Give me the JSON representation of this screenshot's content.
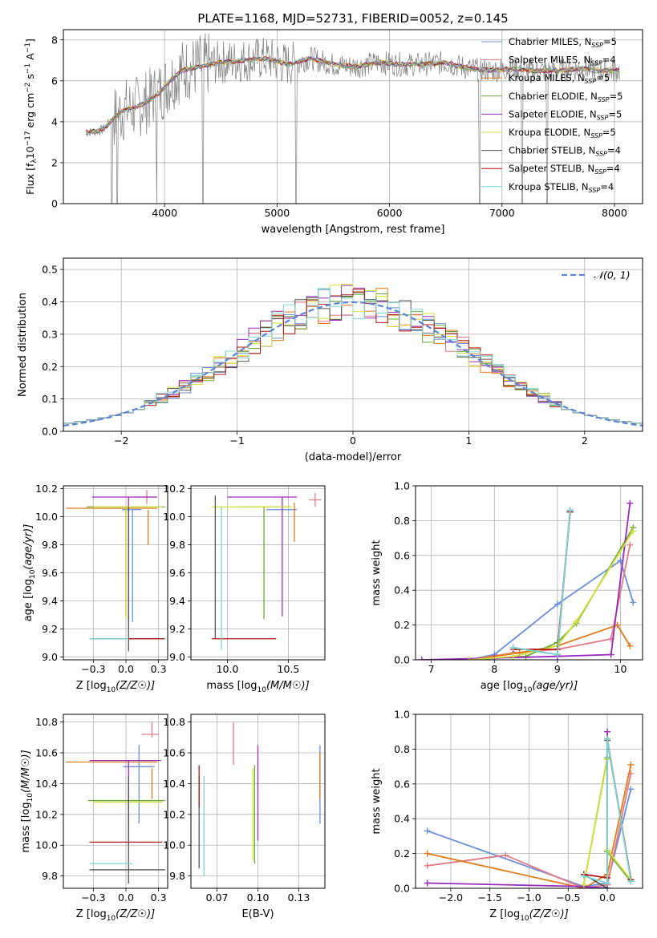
{
  "figure": {
    "title": "PLATE=1168, MJD=52731, FIBERID=0052, z=0.145"
  },
  "models": [
    {
      "imf": "Chabrier",
      "lib": "MILES",
      "nssp": 5,
      "color": "#6a8fd8"
    },
    {
      "imf": "Salpeter",
      "lib": "MILES",
      "nssp": 4,
      "color": "#e27b86"
    },
    {
      "imf": "Kroupa",
      "lib": "MILES",
      "nssp": 5,
      "color": "#e07b1a"
    },
    {
      "imf": "Chabrier",
      "lib": "ELODIE",
      "nssp": 5,
      "color": "#6aaa3a"
    },
    {
      "imf": "Salpeter",
      "lib": "ELODIE",
      "nssp": 5,
      "color": "#9b2bc0"
    },
    {
      "imf": "Kroupa",
      "lib": "ELODIE",
      "nssp": 5,
      "color": "#d6e03a"
    },
    {
      "imf": "Chabrier",
      "lib": "STELIB",
      "nssp": 4,
      "color": "#555555"
    },
    {
      "imf": "Salpeter",
      "lib": "STELIB",
      "nssp": 4,
      "color": "#b01818"
    },
    {
      "imf": "Kroupa",
      "lib": "STELIB",
      "nssp": 4,
      "color": "#7dd6d6"
    }
  ],
  "legend_labels": [
    "Chabrier MILES, N",
    "Salpeter MILES, N",
    "Kroupa MILES, N",
    "Chabrier ELODIE, N",
    "Salpeter ELODIE, N",
    "Kroupa ELODIE, N",
    "Chabrier STELIB, N",
    "Salpeter STELIB, N",
    "Kroupa STELIB, N"
  ],
  "legend_sub": "SSP",
  "legend_vals": [
    "=5",
    "=4",
    "=5",
    "=5",
    "=5",
    "=5",
    "=4",
    "=4",
    "=4"
  ],
  "chart_data": [
    {
      "id": "spectrum",
      "type": "line",
      "xlabel": "wavelength [Angstrom, rest frame]",
      "ylabel_parts": [
        "Flux [f",
        "λ",
        "10",
        "−17",
        " erg cm",
        "−2",
        " s",
        "−1",
        " A",
        "−1",
        "]"
      ],
      "xlim": [
        3100,
        8250
      ],
      "ylim": [
        0,
        8.5
      ],
      "xticks": [
        4000,
        5000,
        6000,
        7000,
        8000
      ],
      "yticks": [
        0,
        2,
        4,
        6,
        8
      ],
      "data_color": "#808080",
      "data_x": [
        3350,
        3450,
        3550,
        3650,
        3750,
        3850,
        3950,
        4050,
        4150,
        4300,
        4500,
        4700,
        4900,
        5100,
        5300,
        5500,
        5700,
        5900,
        6100,
        6300,
        6500,
        6700,
        6900,
        7100,
        7300,
        7500,
        7700,
        7900,
        8050
      ],
      "model_y": [
        3.5,
        3.6,
        4.2,
        4.6,
        4.7,
        5.0,
        5.4,
        6.0,
        6.5,
        6.7,
        6.9,
        7.0,
        7.1,
        6.8,
        7.1,
        6.8,
        6.7,
        6.9,
        6.8,
        6.8,
        6.9,
        6.6,
        6.5,
        6.6,
        6.5,
        6.5,
        6.6,
        6.5,
        6.5
      ],
      "drops": [
        3530,
        3580,
        3930,
        4340,
        5170,
        6800,
        7180,
        7400
      ]
    },
    {
      "id": "residuals",
      "type": "histogram",
      "xlabel": "(data-model)/error",
      "ylabel": "Normed distribution",
      "xlim": [
        -2.5,
        2.5
      ],
      "ylim": [
        0,
        0.535
      ],
      "xticks": [
        -2,
        -1,
        0,
        1,
        2
      ],
      "yticks": [
        0.0,
        0.1,
        0.2,
        0.3,
        0.4,
        0.5
      ],
      "bin_width": 0.1,
      "bin_start": -2.5,
      "reference": {
        "label": "𝒩(0, 1)",
        "mean": 0,
        "sigma": 1,
        "color": "#5b84d8"
      }
    },
    {
      "id": "age-vs-Z",
      "type": "errorbar",
      "xlabel": "Z [log",
      "ylabel": "age  [log",
      "xlim": [
        -0.48,
        0.32
      ],
      "ylim": [
        8.98,
        10.22
      ],
      "xticks": [
        -0.25,
        0.0,
        0.25
      ],
      "yticks": [
        9.0,
        9.2,
        9.4,
        9.6,
        9.8,
        10.0,
        10.2
      ],
      "points": [
        {
          "x": 0.05,
          "y": 10.05,
          "xerr": [
            0.08,
            0.07
          ],
          "yerr": [
            0.8,
            0.0
          ],
          "model": 0
        },
        {
          "x": 0.16,
          "y": 10.14,
          "xerr": [
            0.1,
            0.06
          ],
          "yerr": [
            0.05,
            0.05
          ],
          "model": 1
        },
        {
          "x": 0.0,
          "y": 10.06,
          "xerr": [
            0.46,
            0.24
          ],
          "yerr": [
            0.0,
            0.0
          ],
          "model": 2
        },
        {
          "x": 0.17,
          "y": 10.05,
          "xerr": [
            0.0,
            0.0
          ],
          "yerr": [
            0.25,
            0.0
          ],
          "model": 2
        },
        {
          "x": 0.0,
          "y": 10.07,
          "xerr": [
            0.3,
            0.3
          ],
          "yerr": [
            0.78,
            0.0
          ],
          "model": 3
        },
        {
          "x": 0.02,
          "y": 10.14,
          "xerr": [
            0.28,
            0.22
          ],
          "yerr": [
            0.9,
            0.0
          ],
          "model": 4
        },
        {
          "x": 0.0,
          "y": 10.07,
          "xerr": [
            0.25,
            0.28
          ],
          "yerr": [
            0.8,
            0.0
          ],
          "model": 5
        },
        {
          "x": 0.0,
          "y": 9.13,
          "xerr": [
            0.28,
            0.3
          ],
          "yerr": [
            0.0,
            0.0
          ],
          "model": 6
        },
        {
          "x": 0.02,
          "y": 10.07,
          "xerr": [
            0.0,
            0.0
          ],
          "yerr": [
            1.03,
            0.0
          ],
          "model": 6
        },
        {
          "x": 0.02,
          "y": 9.13,
          "xerr": [
            0.0,
            0.27
          ],
          "yerr": [
            0.0,
            0.0
          ],
          "model": 7
        },
        {
          "x": 0.02,
          "y": 9.13,
          "xerr": [
            0.3,
            0.0
          ],
          "yerr": [
            0.0,
            0.0
          ],
          "model": 8
        }
      ]
    },
    {
      "id": "age-vs-mass",
      "type": "errorbar",
      "xlabel": "mass [log",
      "ylabel": "",
      "xlim": [
        9.7,
        10.8
      ],
      "ylim": [
        8.98,
        10.22
      ],
      "xticks": [
        10.0,
        10.5
      ],
      "yticks": [
        9.0,
        9.2,
        9.4,
        9.6,
        9.8,
        10.0,
        10.2
      ],
      "points": [
        {
          "x": 10.52,
          "y": 10.05,
          "xerr": [
            0.2,
            0.05
          ],
          "yerr": [
            0.0,
            0.0
          ],
          "model": 0
        },
        {
          "x": 10.72,
          "y": 10.12,
          "xerr": [
            0.05,
            0.05
          ],
          "yerr": [
            0.05,
            0.05
          ],
          "model": 1
        },
        {
          "x": 10.55,
          "y": 10.1,
          "xerr": [
            0.0,
            0.0
          ],
          "yerr": [
            0.28,
            0.0
          ],
          "model": 2
        },
        {
          "x": 10.3,
          "y": 10.07,
          "xerr": [
            0.2,
            0.2
          ],
          "yerr": [
            0.8,
            0.0
          ],
          "model": 3
        },
        {
          "x": 10.45,
          "y": 10.14,
          "xerr": [
            0.45,
            0.12
          ],
          "yerr": [
            0.85,
            0.0
          ],
          "model": 4
        },
        {
          "x": 10.25,
          "y": 10.07,
          "xerr": [
            0.38,
            0.28
          ],
          "yerr": [
            0.0,
            0.0
          ],
          "model": 5
        },
        {
          "x": 9.9,
          "y": 10.15,
          "xerr": [
            0.0,
            0.0
          ],
          "yerr": [
            1.02,
            0.0
          ],
          "model": 6
        },
        {
          "x": 10.0,
          "y": 9.13,
          "xerr": [
            0.13,
            0.4
          ],
          "yerr": [
            0.0,
            0.0
          ],
          "model": 7
        },
        {
          "x": 9.95,
          "y": 10.07,
          "xerr": [
            0.0,
            0.0
          ],
          "yerr": [
            1.02,
            0.0
          ],
          "model": 8
        }
      ]
    },
    {
      "id": "weight-vs-age",
      "type": "line",
      "xlabel": "age  [log",
      "ylabel": "mass weight",
      "xlim": [
        6.75,
        10.35
      ],
      "ylim": [
        0,
        1.0
      ],
      "xticks": [
        7,
        8,
        9,
        10
      ],
      "yticks": [
        0.0,
        0.2,
        0.4,
        0.6,
        0.8,
        1.0
      ],
      "series": [
        {
          "model": 0,
          "x": [
            7.6,
            8.0,
            9.0,
            10.0,
            10.2
          ],
          "y": [
            0.0,
            0.03,
            0.32,
            0.57,
            0.33
          ]
        },
        {
          "model": 1,
          "x": [
            7.6,
            8.3,
            9.0,
            9.85,
            10.15
          ],
          "y": [
            0.0,
            0.04,
            0.06,
            0.12,
            0.66
          ]
        },
        {
          "model": 2,
          "x": [
            7.6,
            8.4,
            9.0,
            9.95,
            10.15
          ],
          "y": [
            0.0,
            0.04,
            0.08,
            0.2,
            0.08
          ]
        },
        {
          "model": 3,
          "x": [
            7.6,
            8.5,
            9.0,
            9.3,
            10.2
          ],
          "y": [
            0.0,
            0.02,
            0.1,
            0.21,
            0.76
          ]
        },
        {
          "model": 4,
          "x": [
            6.85,
            8.0,
            9.0,
            9.85,
            10.15
          ],
          "y": [
            0.0,
            0.01,
            0.02,
            0.03,
            0.9
          ]
        },
        {
          "model": 5,
          "x": [
            7.6,
            8.3,
            9.0,
            9.3,
            10.2
          ],
          "y": [
            0.0,
            0.02,
            0.08,
            0.22,
            0.74
          ]
        },
        {
          "model": 6,
          "x": [
            8.3,
            9.0,
            9.2,
            9.2
          ],
          "y": [
            0.07,
            0.03,
            0.85,
            0.86
          ]
        },
        {
          "model": 7,
          "x": [
            8.3,
            9.0,
            9.2,
            9.2
          ],
          "y": [
            0.06,
            0.06,
            0.85,
            0.86
          ]
        },
        {
          "model": 8,
          "x": [
            8.3,
            9.0,
            9.2,
            9.2
          ],
          "y": [
            0.07,
            0.03,
            0.86,
            0.86
          ]
        }
      ]
    },
    {
      "id": "mass-vs-Z",
      "type": "errorbar",
      "xlabel": "Z [log",
      "ylabel": "mass [log",
      "xlim": [
        -0.48,
        0.32
      ],
      "ylim": [
        9.72,
        10.85
      ],
      "xticks": [
        -0.25,
        0.0,
        0.25
      ],
      "yticks": [
        9.8,
        10.0,
        10.2,
        10.4,
        10.6,
        10.8
      ],
      "points": [
        {
          "x": 0.1,
          "y": 10.51,
          "xerr": [
            0.12,
            0.12
          ],
          "yerr": [
            0.37,
            0.14
          ],
          "model": 0
        },
        {
          "x": 0.2,
          "y": 10.72,
          "xerr": [
            0.08,
            0.05
          ],
          "yerr": [
            0.02,
            0.08
          ],
          "model": 1
        },
        {
          "x": 0.0,
          "y": 10.54,
          "xerr": [
            0.46,
            0.24
          ],
          "yerr": [
            0.0,
            0.0
          ],
          "model": 2
        },
        {
          "x": 0.2,
          "y": 10.5,
          "xerr": [
            0.0,
            0.0
          ],
          "yerr": [
            0.2,
            0.0
          ],
          "model": 2
        },
        {
          "x": 0.0,
          "y": 10.29,
          "xerr": [
            0.29,
            0.3
          ],
          "yerr": [
            0.0,
            0.0
          ],
          "model": 3
        },
        {
          "x": 0.02,
          "y": 10.55,
          "xerr": [
            0.3,
            0.25
          ],
          "yerr": [
            0.55,
            0.0
          ],
          "model": 4
        },
        {
          "x": 0.0,
          "y": 10.28,
          "xerr": [
            0.25,
            0.28
          ],
          "yerr": [
            0.0,
            0.0
          ],
          "model": 5
        },
        {
          "x": 0.0,
          "y": 9.84,
          "xerr": [
            0.28,
            0.3
          ],
          "yerr": [
            0.0,
            0.0
          ],
          "model": 6
        },
        {
          "x": 0.02,
          "y": 10.45,
          "xerr": [
            0.0,
            0.0
          ],
          "yerr": [
            0.7,
            0.0
          ],
          "model": 6
        },
        {
          "x": 0.0,
          "y": 10.02,
          "xerr": [
            0.28,
            0.28
          ],
          "yerr": [
            0.0,
            0.0
          ],
          "model": 7
        },
        {
          "x": 0.0,
          "y": 9.88,
          "xerr": [
            0.28,
            0.05
          ],
          "yerr": [
            0.0,
            0.0
          ],
          "model": 8
        }
      ]
    },
    {
      "id": "mass-vs-ebv",
      "type": "errorbar",
      "xlabel": "E(B-V)",
      "ylabel": "",
      "xlim": [
        0.059,
        0.141
      ],
      "ylim": [
        9.72,
        10.85
      ],
      "xticks": [
        0.075,
        0.1,
        0.125
      ],
      "yticks": [
        9.8,
        10.0,
        10.2,
        10.4,
        10.6,
        10.8
      ],
      "points": [
        {
          "x": 0.138,
          "y": 10.4,
          "xerr": [
            0.0,
            0.0
          ],
          "yerr": [
            0.26,
            0.25
          ],
          "model": 0
        },
        {
          "x": 0.085,
          "y": 10.65,
          "xerr": [
            0.0,
            0.0
          ],
          "yerr": [
            0.13,
            0.15
          ],
          "model": 1
        },
        {
          "x": 0.138,
          "y": 10.5,
          "xerr": [
            0.0,
            0.0
          ],
          "yerr": [
            0.2,
            0.1
          ],
          "model": 2
        },
        {
          "x": 0.098,
          "y": 10.2,
          "xerr": [
            0.0,
            0.0
          ],
          "yerr": [
            0.32,
            0.32
          ],
          "model": 3
        },
        {
          "x": 0.1,
          "y": 10.3,
          "xerr": [
            0.0,
            0.0
          ],
          "yerr": [
            0.27,
            0.35
          ],
          "model": 4
        },
        {
          "x": 0.097,
          "y": 10.1,
          "xerr": [
            0.0,
            0.0
          ],
          "yerr": [
            0.2,
            0.4
          ],
          "model": 5
        },
        {
          "x": 0.064,
          "y": 10.15,
          "xerr": [
            0.0,
            0.0
          ],
          "yerr": [
            0.3,
            0.3
          ],
          "model": 6
        },
        {
          "x": 0.064,
          "y": 10.35,
          "xerr": [
            0.0,
            0.0
          ],
          "yerr": [
            0.1,
            0.17
          ],
          "model": 7
        },
        {
          "x": 0.067,
          "y": 10.1,
          "xerr": [
            0.0,
            0.0
          ],
          "yerr": [
            0.3,
            0.35
          ],
          "model": 8
        }
      ]
    },
    {
      "id": "weight-vs-Z",
      "type": "line",
      "xlabel": "Z [log",
      "ylabel": "mass weight",
      "xlim": [
        -2.45,
        0.45
      ],
      "ylim": [
        0,
        1.0
      ],
      "xticks": [
        -2.0,
        -1.5,
        -1.0,
        -0.5,
        0.0
      ],
      "yticks": [
        0.0,
        0.2,
        0.4,
        0.6,
        0.8,
        1.0
      ],
      "series": [
        {
          "model": 0,
          "x": [
            -2.3,
            -0.3,
            0.0,
            0.3
          ],
          "y": [
            0.33,
            0.01,
            0.03,
            0.57
          ]
        },
        {
          "model": 1,
          "x": [
            -2.3,
            -1.3,
            -0.3,
            0.0,
            0.3
          ],
          "y": [
            0.13,
            0.19,
            0.0,
            0.02,
            0.66
          ]
        },
        {
          "model": 2,
          "x": [
            -2.3,
            -0.3,
            0.0,
            0.3
          ],
          "y": [
            0.2,
            0.0,
            0.08,
            0.71
          ]
        },
        {
          "model": 3,
          "x": [
            -0.3,
            0.0,
            0.0,
            0.3
          ],
          "y": [
            0.02,
            0.75,
            0.21,
            0.04
          ]
        },
        {
          "model": 4,
          "x": [
            -2.3,
            -0.3,
            0.0,
            0.0
          ],
          "y": [
            0.03,
            0.01,
            0.0,
            0.9
          ]
        },
        {
          "model": 5,
          "x": [
            -0.3,
            0.0,
            0.0,
            0.3
          ],
          "y": [
            0.02,
            0.74,
            0.22,
            0.05
          ]
        },
        {
          "model": 6,
          "x": [
            -0.3,
            0.0,
            0.0,
            0.3
          ],
          "y": [
            0.08,
            0.0,
            0.85,
            0.05
          ]
        },
        {
          "model": 7,
          "x": [
            -0.3,
            0.0,
            0.0,
            0.3
          ],
          "y": [
            0.08,
            0.06,
            0.86,
            0.05
          ]
        },
        {
          "model": 8,
          "x": [
            -0.3,
            0.0,
            0.0,
            0.3
          ],
          "y": [
            0.07,
            0.03,
            0.86,
            0.04
          ]
        }
      ]
    }
  ]
}
